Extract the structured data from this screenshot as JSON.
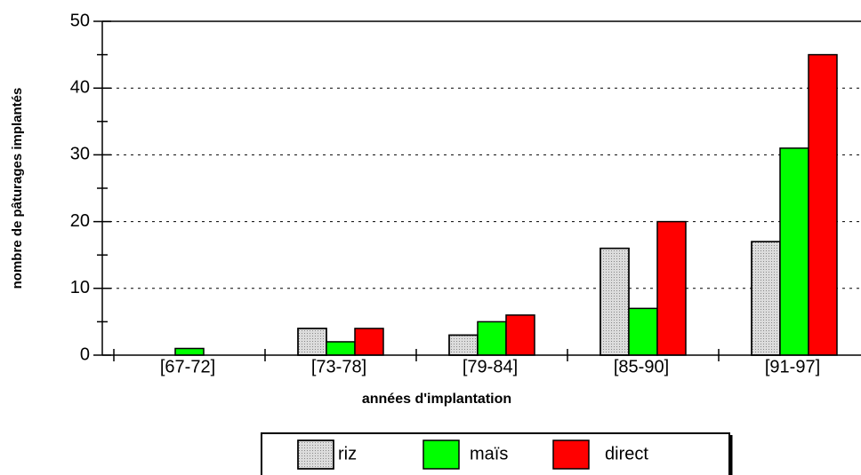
{
  "chart_data": {
    "type": "bar",
    "xlabel": "années d'implantation",
    "ylabel": "nombre de pâturages implantés",
    "categories": [
      "[67-72]",
      "[73-78]",
      "[79-84]",
      "[85-90]",
      "[91-97]"
    ],
    "series": [
      {
        "name": "riz",
        "color": "#dcdcdc",
        "values": [
          0,
          4,
          3,
          16,
          17
        ]
      },
      {
        "name": "maïs",
        "color": "#00ff00",
        "values": [
          1,
          2,
          5,
          7,
          31
        ]
      },
      {
        "name": "direct",
        "color": "#ff0000",
        "values": [
          0,
          4,
          6,
          20,
          45
        ]
      }
    ],
    "ylim": [
      0,
      50
    ],
    "yticks": [
      0,
      10,
      20,
      30,
      40,
      50
    ],
    "grid": true
  }
}
